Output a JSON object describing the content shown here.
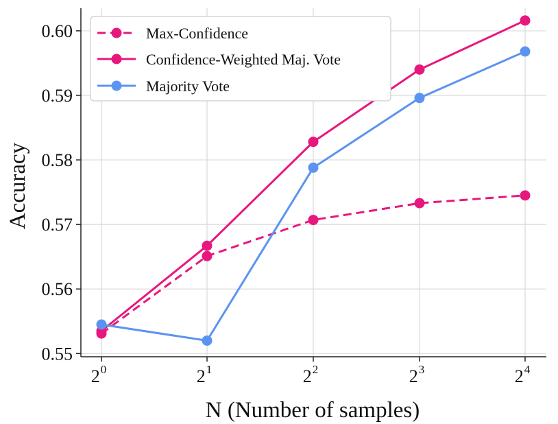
{
  "chart_data": {
    "type": "line",
    "xlabel": "N (Number of samples)",
    "ylabel": "Accuracy",
    "x_scale": "log2",
    "x": [
      1,
      2,
      4,
      8,
      16
    ],
    "x_tick_labels": [
      {
        "base": "2",
        "exp": "0"
      },
      {
        "base": "2",
        "exp": "1"
      },
      {
        "base": "2",
        "exp": "2"
      },
      {
        "base": "2",
        "exp": "3"
      },
      {
        "base": "2",
        "exp": "4"
      }
    ],
    "yticks": [
      "0.55",
      "0.56",
      "0.57",
      "0.58",
      "0.59",
      "0.60"
    ],
    "ytick_values": [
      0.55,
      0.56,
      0.57,
      0.58,
      0.59,
      0.6
    ],
    "ylim": [
      0.5495,
      0.6035
    ],
    "grid": true,
    "legend_position": "top-left",
    "series": [
      {
        "name": "Max-Confidence",
        "color": "#e8177d",
        "line_style": "dashed",
        "marker": "circle",
        "values": [
          0.5531,
          0.5651,
          0.5707,
          0.5733,
          0.5745
        ]
      },
      {
        "name": "Confidence-Weighted Maj. Vote",
        "color": "#e8177d",
        "line_style": "solid",
        "marker": "circle",
        "values": [
          0.5535,
          0.5667,
          0.5828,
          0.594,
          0.6016
        ]
      },
      {
        "name": "Majority Vote",
        "color": "#5b94f0",
        "line_style": "solid",
        "marker": "circle",
        "values": [
          0.5545,
          0.552,
          0.5788,
          0.5896,
          0.5968
        ]
      }
    ]
  }
}
